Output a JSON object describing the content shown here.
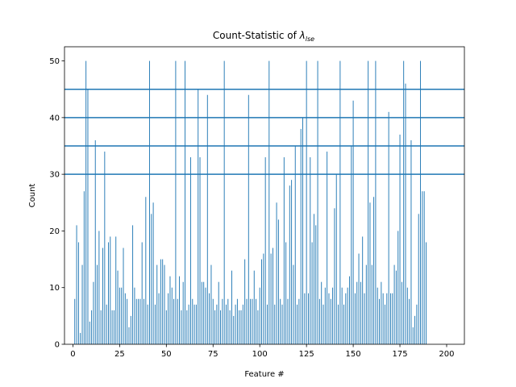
{
  "chart_data": {
    "type": "bar",
    "title_prefix": "Count-Statistic of ",
    "title_symbol": "λ",
    "title_subscript": "lse",
    "xlabel": "Feature #",
    "ylabel": "Count",
    "xlim": [
      -4.5,
      209.5
    ],
    "ylim": [
      0,
      52.5
    ],
    "xticks": [
      0,
      25,
      50,
      75,
      100,
      125,
      150,
      175,
      200
    ],
    "yticks": [
      0,
      10,
      20,
      30,
      40,
      50
    ],
    "hlines": [
      30,
      35,
      40,
      45
    ],
    "colors": {
      "bar": "#1f77b4",
      "hline": "#1f77b4"
    },
    "x_start": 1,
    "values": [
      8,
      21,
      18,
      2,
      14,
      27,
      50,
      45,
      4,
      6,
      11,
      36,
      14,
      20,
      6,
      17,
      34,
      7,
      18,
      19,
      6,
      6,
      19,
      13,
      10,
      10,
      17,
      9,
      8,
      3,
      5,
      21,
      10,
      8,
      8,
      8,
      18,
      8,
      26,
      7,
      50,
      23,
      25,
      7,
      14,
      9,
      15,
      15,
      14,
      6,
      9,
      12,
      10,
      8,
      50,
      8,
      12,
      6,
      11,
      50,
      6,
      7,
      33,
      8,
      7,
      7,
      45,
      33,
      11,
      11,
      10,
      44,
      9,
      14,
      8,
      6,
      7,
      11,
      6,
      8,
      50,
      7,
      8,
      6,
      13,
      5,
      7,
      8,
      6,
      6,
      7,
      15,
      8,
      44,
      8,
      8,
      13,
      8,
      6,
      10,
      15,
      16,
      33,
      7,
      50,
      16,
      17,
      7,
      25,
      22,
      8,
      7,
      33,
      18,
      8,
      28,
      29,
      14,
      35,
      7,
      8,
      38,
      40,
      9,
      50,
      9,
      33,
      18,
      23,
      21,
      50,
      8,
      11,
      7,
      10,
      34,
      9,
      8,
      10,
      24,
      30,
      7,
      50,
      10,
      7,
      9,
      10,
      12,
      35,
      43,
      9,
      11,
      16,
      11,
      19,
      9,
      14,
      50,
      25,
      14,
      26,
      50,
      10,
      8,
      11,
      9,
      7,
      9,
      41,
      9,
      9,
      14,
      13,
      20,
      37,
      11,
      50,
      46,
      10,
      8,
      36,
      3,
      5,
      7,
      23,
      50,
      27,
      27,
      18
    ]
  }
}
